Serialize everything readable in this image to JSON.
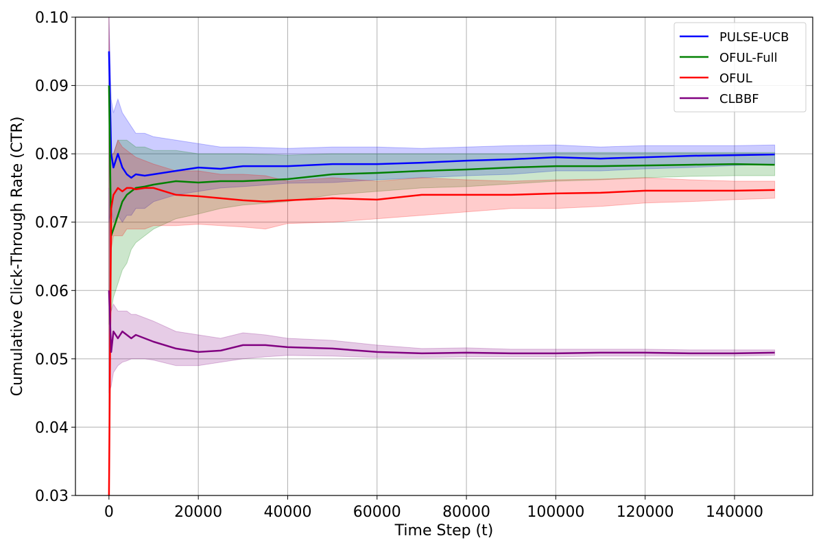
{
  "chart_data": {
    "type": "line",
    "title": "",
    "xlabel": "Time Step (t)",
    "ylabel": "Cumulative Click-Through Rate (CTR)",
    "xlim": [
      -7500,
      157500
    ],
    "ylim": [
      0.03,
      0.1
    ],
    "x_ticks": [
      0,
      20000,
      40000,
      60000,
      80000,
      100000,
      120000,
      140000
    ],
    "y_ticks": [
      0.03,
      0.04,
      0.05,
      0.06,
      0.07,
      0.08,
      0.09,
      0.1
    ],
    "y_tick_labels": [
      "0.03",
      "0.04",
      "0.05",
      "0.06",
      "0.07",
      "0.08",
      "0.09",
      "0.10"
    ],
    "grid": true,
    "legend_position": "top-right",
    "series": [
      {
        "name": "PULSE-UCB",
        "color": "#0000ff",
        "x": [
          0,
          500,
          1000,
          2000,
          3000,
          4000,
          5000,
          6000,
          8000,
          10000,
          15000,
          20000,
          25000,
          30000,
          40000,
          50000,
          60000,
          70000,
          80000,
          90000,
          100000,
          110000,
          120000,
          130000,
          140000,
          149000
        ],
        "y": [
          0.095,
          0.08,
          0.078,
          0.08,
          0.078,
          0.077,
          0.0765,
          0.077,
          0.0768,
          0.077,
          0.0775,
          0.078,
          0.0778,
          0.0782,
          0.0782,
          0.0785,
          0.0785,
          0.0787,
          0.079,
          0.0792,
          0.0795,
          0.0793,
          0.0795,
          0.0797,
          0.0798,
          0.0799
        ],
        "lower": [
          0.07,
          0.072,
          0.07,
          0.071,
          0.07,
          0.071,
          0.071,
          0.072,
          0.072,
          0.073,
          0.074,
          0.0745,
          0.075,
          0.0752,
          0.0757,
          0.0758,
          0.0762,
          0.0765,
          0.0768,
          0.077,
          0.0775,
          0.0775,
          0.0778,
          0.078,
          0.0783,
          0.0785
        ],
        "upper": [
          0.1,
          0.088,
          0.086,
          0.088,
          0.086,
          0.085,
          0.084,
          0.083,
          0.083,
          0.0825,
          0.082,
          0.0815,
          0.081,
          0.081,
          0.0808,
          0.081,
          0.081,
          0.0808,
          0.081,
          0.0812,
          0.0813,
          0.081,
          0.0812,
          0.0812,
          0.0812,
          0.0813
        ]
      },
      {
        "name": "OFUL-Full",
        "color": "#008000",
        "x": [
          0,
          500,
          1000,
          2000,
          3000,
          4000,
          5000,
          6000,
          8000,
          10000,
          15000,
          20000,
          25000,
          30000,
          40000,
          50000,
          60000,
          70000,
          80000,
          90000,
          100000,
          110000,
          120000,
          130000,
          140000,
          149000
        ],
        "y": [
          0.09,
          0.068,
          0.069,
          0.071,
          0.073,
          0.074,
          0.0745,
          0.075,
          0.0752,
          0.0755,
          0.076,
          0.0758,
          0.076,
          0.076,
          0.0763,
          0.077,
          0.0772,
          0.0775,
          0.0777,
          0.078,
          0.0782,
          0.0782,
          0.0783,
          0.0784,
          0.0785,
          0.0784
        ],
        "lower": [
          0.055,
          0.057,
          0.059,
          0.061,
          0.063,
          0.064,
          0.066,
          0.067,
          0.068,
          0.069,
          0.0705,
          0.0712,
          0.072,
          0.0725,
          0.073,
          0.074,
          0.0745,
          0.075,
          0.0752,
          0.0756,
          0.076,
          0.0762,
          0.0765,
          0.0767,
          0.0768,
          0.0768
        ],
        "upper": [
          0.095,
          0.08,
          0.08,
          0.082,
          0.082,
          0.082,
          0.0815,
          0.081,
          0.081,
          0.0805,
          0.0805,
          0.08,
          0.08,
          0.08,
          0.0798,
          0.08,
          0.08,
          0.08,
          0.08,
          0.08,
          0.0802,
          0.0802,
          0.0802,
          0.0802,
          0.0802,
          0.0802
        ]
      },
      {
        "name": "OFUL",
        "color": "#ff0000",
        "x": [
          0,
          500,
          1000,
          2000,
          3000,
          4000,
          5000,
          6000,
          8000,
          10000,
          15000,
          20000,
          25000,
          30000,
          35000,
          40000,
          50000,
          60000,
          70000,
          80000,
          90000,
          100000,
          110000,
          120000,
          130000,
          140000,
          149000
        ],
        "y": [
          0.03,
          0.072,
          0.074,
          0.075,
          0.0745,
          0.075,
          0.075,
          0.0748,
          0.075,
          0.075,
          0.074,
          0.0738,
          0.0735,
          0.0732,
          0.073,
          0.0732,
          0.0735,
          0.0733,
          0.074,
          0.074,
          0.074,
          0.0742,
          0.0743,
          0.0746,
          0.0746,
          0.0746,
          0.0747
        ],
        "lower": [
          0.03,
          0.066,
          0.068,
          0.068,
          0.068,
          0.069,
          0.069,
          0.069,
          0.069,
          0.0695,
          0.0695,
          0.0697,
          0.0695,
          0.0693,
          0.069,
          0.0698,
          0.07,
          0.0705,
          0.071,
          0.0715,
          0.072,
          0.072,
          0.0723,
          0.0728,
          0.073,
          0.0733,
          0.0735
        ],
        "upper": [
          0.1,
          0.08,
          0.08,
          0.082,
          0.081,
          0.0805,
          0.08,
          0.0795,
          0.079,
          0.0785,
          0.0775,
          0.0775,
          0.077,
          0.077,
          0.0768,
          0.076,
          0.0765,
          0.076,
          0.0765,
          0.0762,
          0.076,
          0.0762,
          0.0763,
          0.0765,
          0.0762,
          0.076,
          0.076
        ]
      },
      {
        "name": "CLBBF",
        "color": "#800080",
        "x": [
          0,
          500,
          1000,
          2000,
          3000,
          4000,
          5000,
          6000,
          8000,
          10000,
          15000,
          20000,
          25000,
          30000,
          35000,
          40000,
          50000,
          60000,
          70000,
          80000,
          90000,
          100000,
          110000,
          120000,
          130000,
          140000,
          149000
        ],
        "y": [
          0.06,
          0.051,
          0.054,
          0.053,
          0.054,
          0.0535,
          0.053,
          0.0535,
          0.053,
          0.0525,
          0.0515,
          0.051,
          0.0512,
          0.052,
          0.052,
          0.0517,
          0.0515,
          0.051,
          0.0508,
          0.0509,
          0.0508,
          0.0508,
          0.0509,
          0.0509,
          0.0508,
          0.0508,
          0.0509
        ],
        "lower": [
          0.045,
          0.046,
          0.048,
          0.049,
          0.0495,
          0.0497,
          0.05,
          0.05,
          0.05,
          0.0498,
          0.049,
          0.049,
          0.0495,
          0.05,
          0.0503,
          0.0505,
          0.0504,
          0.0502,
          0.0502,
          0.0503,
          0.0503,
          0.0503,
          0.0504,
          0.0504,
          0.0504,
          0.0504,
          0.0505
        ],
        "upper": [
          0.075,
          0.057,
          0.058,
          0.057,
          0.057,
          0.057,
          0.0565,
          0.0565,
          0.056,
          0.0555,
          0.054,
          0.0535,
          0.053,
          0.0538,
          0.0535,
          0.053,
          0.0527,
          0.052,
          0.0515,
          0.0516,
          0.0514,
          0.0514,
          0.0514,
          0.0514,
          0.0513,
          0.0513,
          0.0513
        ]
      }
    ]
  }
}
